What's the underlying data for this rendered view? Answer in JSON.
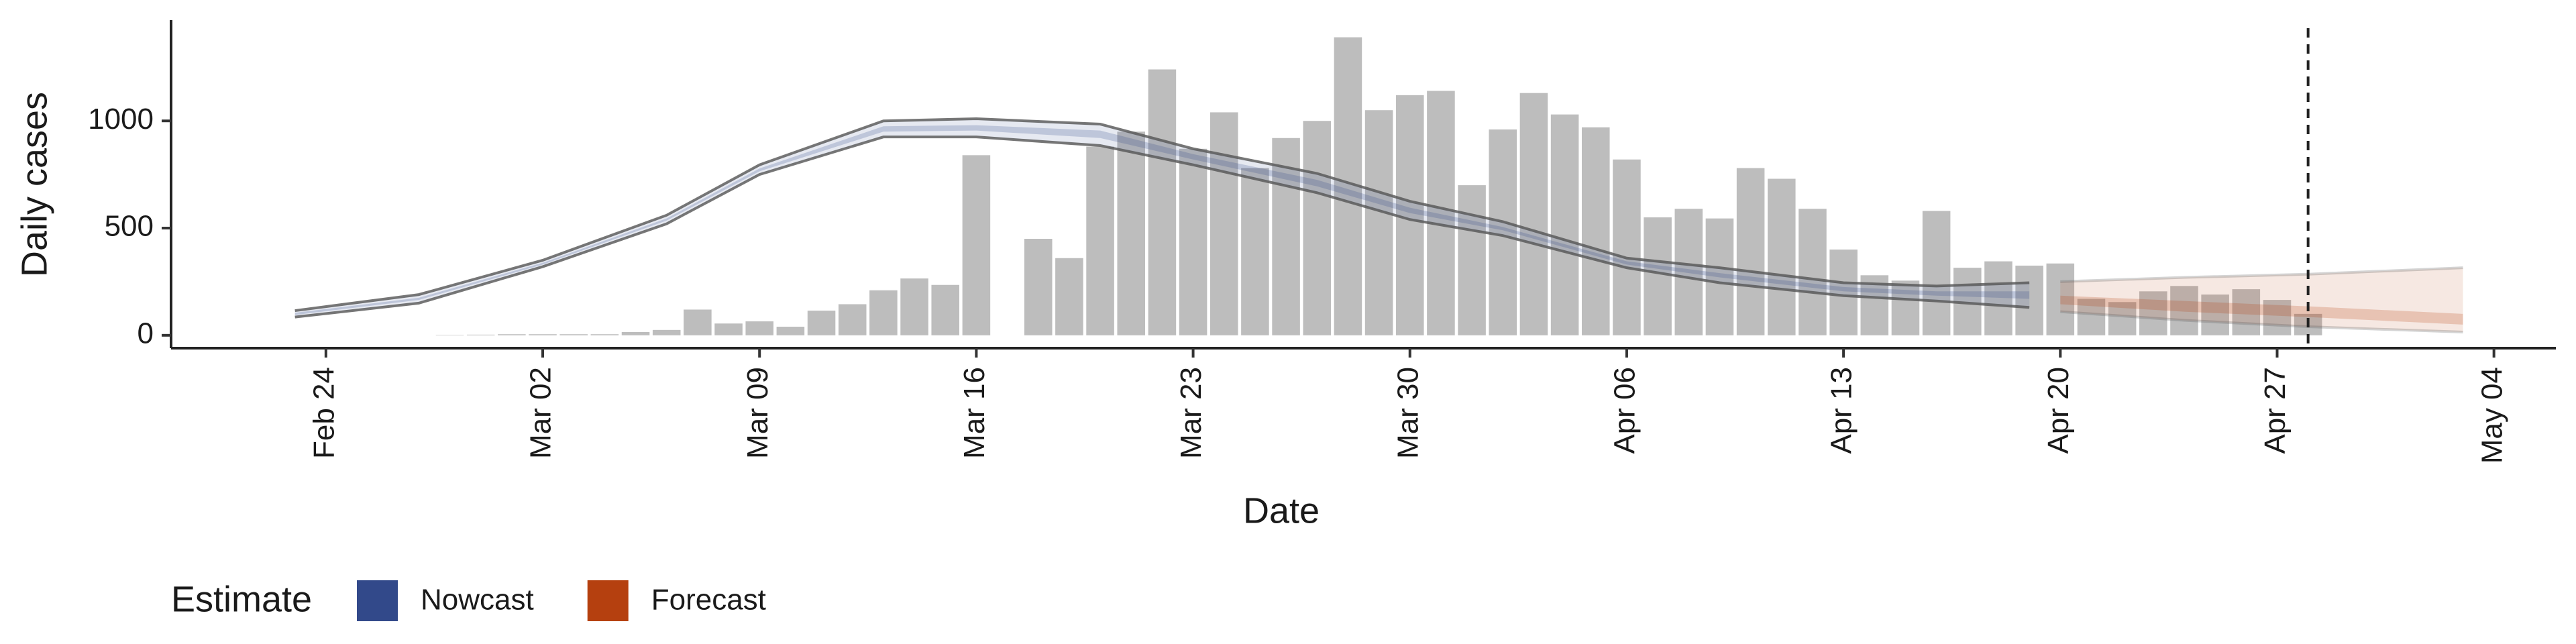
{
  "chart_data": {
    "type": "bar",
    "xlabel": "Date",
    "ylabel": "Daily cases",
    "legend_title": "Estimate",
    "legend_position": "bottom",
    "xlim": [
      "Feb 19",
      "May 06"
    ],
    "xticks": [
      "Feb 24",
      "Mar 02",
      "Mar 09",
      "Mar 16",
      "Mar 23",
      "Mar 30",
      "Apr 06",
      "Apr 13",
      "Apr 20",
      "Apr 27",
      "May 04"
    ],
    "ylim": [
      -60,
      1470
    ],
    "yticks": [
      0,
      500,
      1000
    ],
    "vline": "Apr 28",
    "bar_color": "#bdbdbd",
    "categories": [
      "Feb 28",
      "Feb 29",
      "Mar 01",
      "Mar 02",
      "Mar 03",
      "Mar 04",
      "Mar 05",
      "Mar 06",
      "Mar 07",
      "Mar 08",
      "Mar 09",
      "Mar 10",
      "Mar 11",
      "Mar 12",
      "Mar 13",
      "Mar 14",
      "Mar 15",
      "Mar 16",
      "Mar 17",
      "Mar 18",
      "Mar 19",
      "Mar 20",
      "Mar 21",
      "Mar 22",
      "Mar 23",
      "Mar 24",
      "Mar 25",
      "Mar 26",
      "Mar 27",
      "Mar 28",
      "Mar 29",
      "Mar 30",
      "Mar 31",
      "Apr 01",
      "Apr 02",
      "Apr 03",
      "Apr 04",
      "Apr 05",
      "Apr 06",
      "Apr 07",
      "Apr 08",
      "Apr 09",
      "Apr 10",
      "Apr 11",
      "Apr 12",
      "Apr 13",
      "Apr 14",
      "Apr 15",
      "Apr 16",
      "Apr 17",
      "Apr 18",
      "Apr 19",
      "Apr 20",
      "Apr 21",
      "Apr 22",
      "Apr 23",
      "Apr 24",
      "Apr 25",
      "Apr 26",
      "Apr 27",
      "Apr 28"
    ],
    "values": [
      2,
      3,
      5,
      5,
      5,
      5,
      15,
      25,
      120,
      55,
      65,
      40,
      115,
      145,
      210,
      265,
      235,
      840,
      null,
      450,
      360,
      880,
      950,
      1240,
      870,
      1040,
      780,
      920,
      1000,
      1390,
      1050,
      1120,
      1140,
      700,
      960,
      1130,
      1030,
      970,
      820,
      550,
      590,
      545,
      780,
      730,
      590,
      400,
      280,
      255,
      580,
      315,
      345,
      325,
      335,
      170,
      155,
      205,
      230,
      190,
      215,
      165,
      100
    ],
    "series": [
      {
        "name": "Nowcast",
        "color": "#32498a",
        "x": [
          "Feb 23",
          "Feb 27",
          "Mar 02",
          "Mar 06",
          "Mar 09",
          "Mar 13",
          "Mar 16",
          "Mar 20",
          "Mar 23",
          "Mar 27",
          "Mar 30",
          "Apr 02",
          "Apr 06",
          "Apr 09",
          "Apr 13",
          "Apr 16",
          "Apr 19"
        ],
        "upper_90": [
          115,
          190,
          350,
          560,
          795,
          1000,
          1010,
          985,
          870,
          755,
          625,
          530,
          360,
          315,
          245,
          230,
          245
        ],
        "lower_90": [
          85,
          150,
          320,
          520,
          750,
          925,
          925,
          885,
          795,
          665,
          540,
          465,
          315,
          245,
          185,
          160,
          130
        ],
        "upper_50": [
          105,
          175,
          338,
          545,
          778,
          975,
          980,
          955,
          845,
          725,
          595,
          505,
          345,
          290,
          225,
          205,
          205
        ],
        "lower_50": [
          95,
          165,
          330,
          535,
          765,
          950,
          955,
          920,
          820,
          695,
          570,
          490,
          330,
          270,
          205,
          185,
          170
        ]
      },
      {
        "name": "Forecast",
        "color": "#b5400f",
        "x": [
          "Apr 20",
          "Apr 24",
          "Apr 28",
          "May 03"
        ],
        "upper_90": [
          250,
          270,
          285,
          315
        ],
        "lower_90": [
          110,
          70,
          40,
          15
        ],
        "upper_50": [
          185,
          160,
          135,
          100
        ],
        "lower_50": [
          145,
          110,
          85,
          50
        ]
      }
    ]
  }
}
